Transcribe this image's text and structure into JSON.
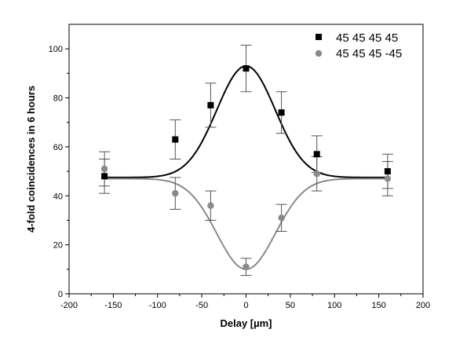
{
  "chart_data": {
    "type": "scatter",
    "title": "",
    "xlabel": "Delay [µm]",
    "ylabel": "4-fold coincidences in 6 hours",
    "xlim": [
      -200,
      200
    ],
    "ylim": [
      0,
      110
    ],
    "xticks": [
      -200,
      -150,
      -100,
      -50,
      0,
      50,
      100,
      150,
      200
    ],
    "yticks": [
      0,
      20,
      40,
      60,
      80,
      100
    ],
    "grid": false,
    "legend_position": "top-right",
    "series": [
      {
        "name": "45 45 45 45",
        "color": "#000000",
        "marker": "square",
        "x": [
          -160,
          -80,
          -40,
          0,
          40,
          80,
          160
        ],
        "y": [
          48,
          63,
          77,
          92,
          74,
          57,
          50
        ],
        "err": [
          7,
          8,
          9,
          9.5,
          8.5,
          7.5,
          7
        ],
        "fit": {
          "kind": "gaussian",
          "baseline": 47.5,
          "amplitude": 45.5,
          "center": 0,
          "sigma": 33
        }
      },
      {
        "name": "45 45 45 -45",
        "color": "#8a8a8a",
        "marker": "circle",
        "x": [
          -160,
          -80,
          -40,
          0,
          40,
          80,
          160
        ],
        "y": [
          51,
          41,
          36,
          11,
          31,
          49,
          47
        ],
        "err": [
          7,
          6.5,
          6,
          3.5,
          5.5,
          7,
          7
        ],
        "fit": {
          "kind": "gaussian",
          "baseline": 47,
          "amplitude": -37,
          "center": 0,
          "sigma": 33
        }
      }
    ]
  }
}
